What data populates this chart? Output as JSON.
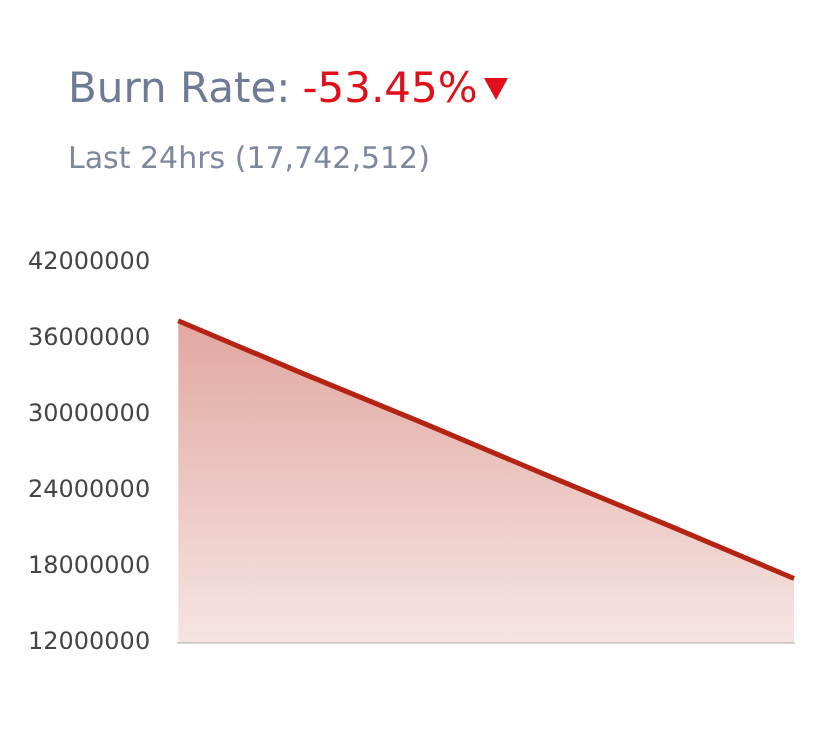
{
  "chart_data": {
    "type": "area",
    "title": "Burn Rate:",
    "subtitle": "Last 24hrs (17,742,512)",
    "annotations": [
      "-53.45%"
    ],
    "categories": [
      null,
      null,
      null,
      null,
      null,
      null
    ],
    "series": [
      {
        "color": "#b52412",
        "values": [
          37400000,
          33300000,
          29300000,
          25200000,
          21200000,
          17100000
        ]
      }
    ],
    "ylim": [
      12000000,
      42000000
    ],
    "yticks": [
      12000000,
      18000000,
      24000000,
      30000000,
      36000000,
      42000000
    ],
    "grid": false,
    "legend": false,
    "marker": "none"
  }
}
